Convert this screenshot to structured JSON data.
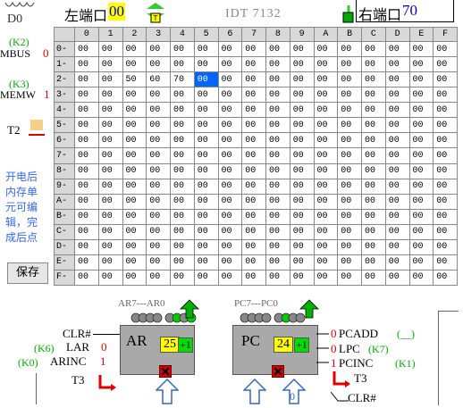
{
  "top": {
    "d0_label": "D0",
    "left_port_label": "左端口",
    "left_port_value": "00",
    "chip_label": "IDT 7132",
    "right_port_label": "右端口",
    "right_port_value": "70"
  },
  "left_panel": {
    "k2_label": "(K2)",
    "mbus_label": "MBUS",
    "mbus_value": "0",
    "k3_label": "(K3)",
    "memw_label": "MEMW",
    "memw_value": "1",
    "t2_label": "T2",
    "note_lines": [
      "开电后",
      "内存单",
      "元可编",
      "辑，完",
      "成后点"
    ],
    "save_button": "保存"
  },
  "memory": {
    "col_headers": [
      "0",
      "1",
      "2",
      "3",
      "4",
      "5",
      "6",
      "7",
      "8",
      "9",
      "A",
      "B",
      "C",
      "D",
      "E",
      "F"
    ],
    "row_headers": [
      "0-",
      "1-",
      "2-",
      "3-",
      "4-",
      "5-",
      "6-",
      "7-",
      "8-",
      "9-",
      "A-",
      "B-",
      "C-",
      "D-",
      "E-",
      "F-"
    ],
    "rows": [
      [
        "00",
        "00",
        "00",
        "00",
        "00",
        "00",
        "00",
        "00",
        "00",
        "00",
        "00",
        "00",
        "00",
        "00",
        "00",
        "00"
      ],
      [
        "00",
        "00",
        "00",
        "00",
        "00",
        "00",
        "00",
        "00",
        "00",
        "00",
        "00",
        "00",
        "00",
        "00",
        "00",
        "00"
      ],
      [
        "00",
        "00",
        "50",
        "60",
        "70",
        "00",
        "00",
        "00",
        "00",
        "00",
        "00",
        "00",
        "00",
        "00",
        "00",
        "00"
      ],
      [
        "00",
        "00",
        "00",
        "00",
        "00",
        "00",
        "00",
        "00",
        "00",
        "00",
        "00",
        "00",
        "00",
        "00",
        "00",
        "00"
      ],
      [
        "00",
        "00",
        "00",
        "00",
        "00",
        "00",
        "00",
        "00",
        "00",
        "00",
        "00",
        "00",
        "00",
        "00",
        "00",
        "00"
      ],
      [
        "00",
        "00",
        "00",
        "00",
        "00",
        "00",
        "00",
        "00",
        "00",
        "00",
        "00",
        "00",
        "00",
        "00",
        "00",
        "00"
      ],
      [
        "00",
        "00",
        "00",
        "00",
        "00",
        "00",
        "00",
        "00",
        "00",
        "00",
        "00",
        "00",
        "00",
        "00",
        "00",
        "00"
      ],
      [
        "00",
        "00",
        "00",
        "00",
        "00",
        "00",
        "00",
        "00",
        "00",
        "00",
        "00",
        "00",
        "00",
        "00",
        "00",
        "00"
      ],
      [
        "00",
        "00",
        "00",
        "00",
        "00",
        "00",
        "00",
        "00",
        "00",
        "00",
        "00",
        "00",
        "00",
        "00",
        "00",
        "00"
      ],
      [
        "00",
        "00",
        "00",
        "00",
        "00",
        "00",
        "00",
        "00",
        "00",
        "00",
        "00",
        "00",
        "00",
        "00",
        "00",
        "00"
      ],
      [
        "00",
        "00",
        "00",
        "00",
        "00",
        "00",
        "00",
        "00",
        "00",
        "00",
        "00",
        "00",
        "00",
        "00",
        "00",
        "00"
      ],
      [
        "00",
        "00",
        "00",
        "00",
        "00",
        "00",
        "00",
        "00",
        "00",
        "00",
        "00",
        "00",
        "00",
        "00",
        "00",
        "00"
      ],
      [
        "00",
        "00",
        "00",
        "00",
        "00",
        "00",
        "00",
        "00",
        "00",
        "00",
        "00",
        "00",
        "00",
        "00",
        "00",
        "00"
      ],
      [
        "00",
        "00",
        "00",
        "00",
        "00",
        "00",
        "00",
        "00",
        "00",
        "00",
        "00",
        "00",
        "00",
        "00",
        "00",
        "00"
      ],
      [
        "00",
        "00",
        "00",
        "00",
        "00",
        "00",
        "00",
        "00",
        "00",
        "00",
        "00",
        "00",
        "00",
        "00",
        "00",
        "00"
      ],
      [
        "00",
        "00",
        "00",
        "00",
        "00",
        "00",
        "00",
        "00",
        "00",
        "00",
        "00",
        "00",
        "00",
        "00",
        "00",
        "00"
      ]
    ],
    "selected_row": 2,
    "selected_col": 5
  },
  "ar_section": {
    "range_label": "AR7---AR0",
    "clr_label": "CLR#",
    "k6_label": "(K6)",
    "lar_label": "LAR",
    "lar_value": "0",
    "k0_label": "(K0)",
    "arinc_label": "ARINC",
    "arinc_value": "1",
    "t3_label": "T3",
    "reg_name": "AR",
    "reg_value": "25",
    "inc_label": "+1"
  },
  "pc_section": {
    "range_label": "PC7---PC0",
    "reg_name": "PC",
    "reg_value": "24",
    "inc_label": "+1",
    "pcadd_value": "0",
    "pcadd_label": "PCADD",
    "pcadd_key": "(__)",
    "lpc_value": "0",
    "lpc_label": "LPC",
    "lpc_key": "(K7)",
    "pcinc_value": "1",
    "pcinc_label": "PCINC",
    "pcinc_key": "(K1)",
    "t3_label": "T3",
    "clr_label": "CLR#",
    "bus_bit": "0"
  },
  "colors": {
    "green": "#00b000",
    "red": "#e00000",
    "highlight": "#ffff00",
    "selected": "#0066ff",
    "register_gray": "#a9a9a9"
  }
}
